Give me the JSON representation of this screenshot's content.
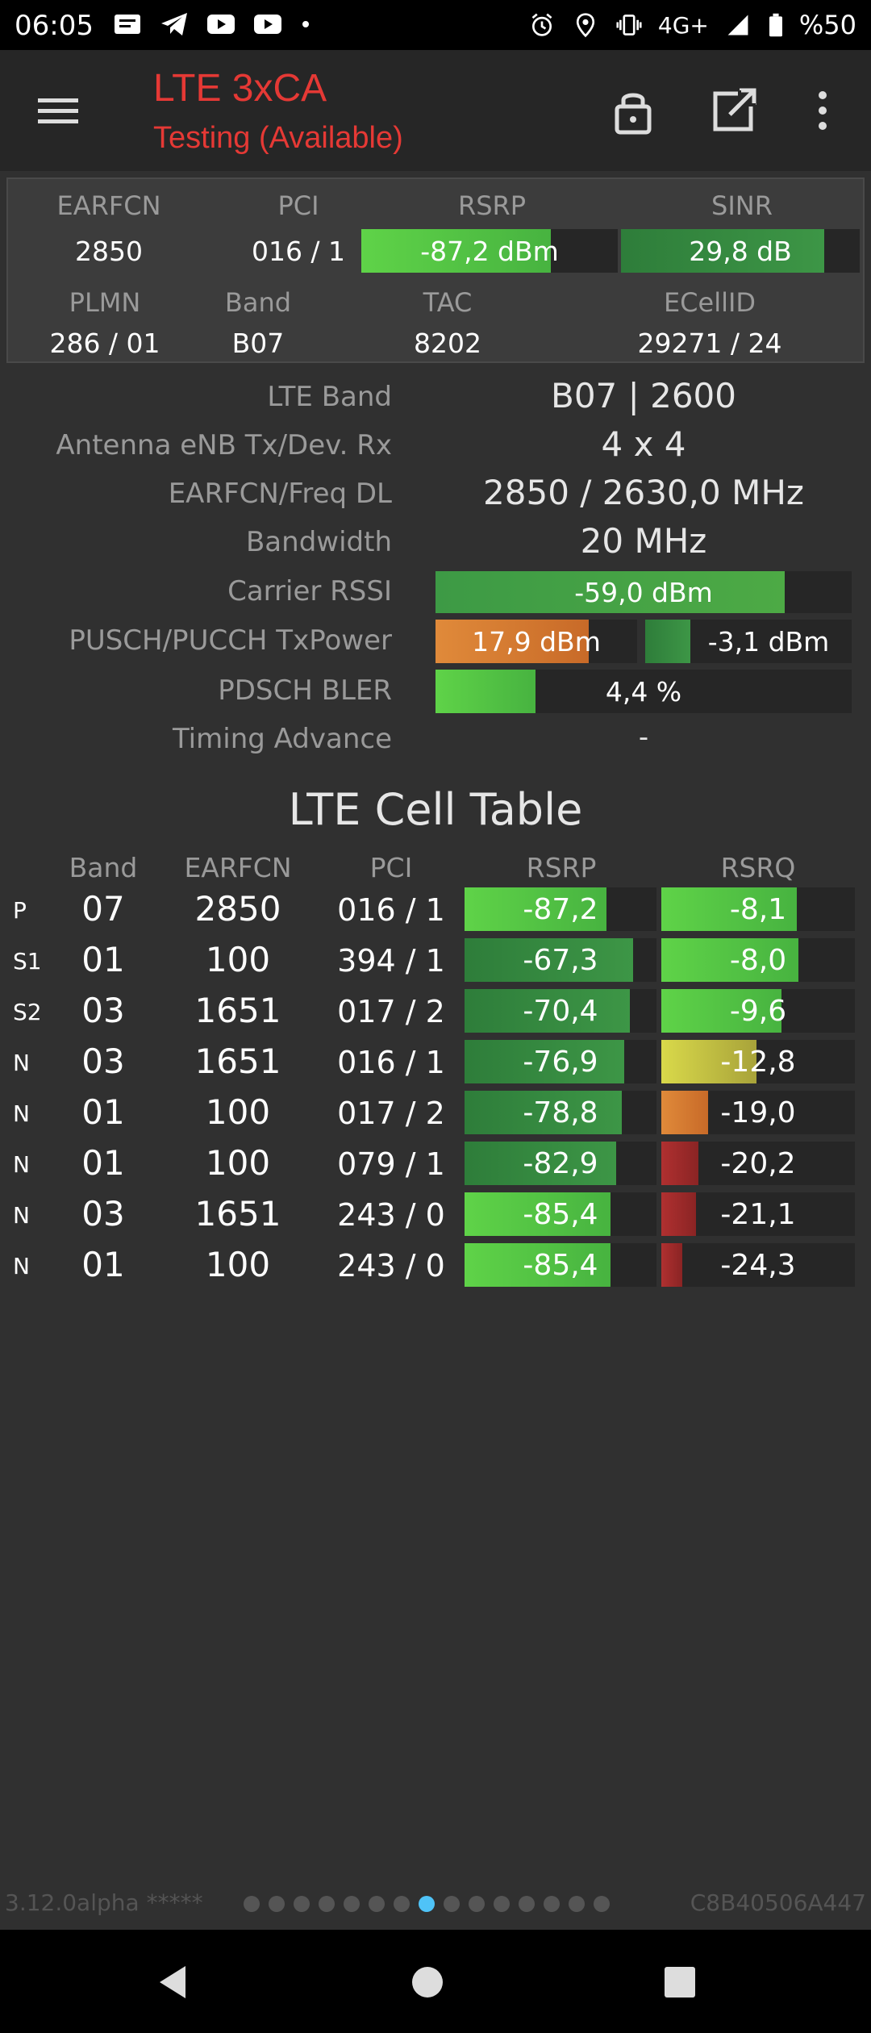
{
  "status_bar": {
    "time": "06:05",
    "network": "4G+",
    "battery": "%50",
    "icons_left": [
      "notification-icon",
      "telegram-icon",
      "youtube-icon",
      "youtube-icon",
      "dot-icon"
    ],
    "icons_right": [
      "alarm-icon",
      "location-icon",
      "vibrate-icon",
      "signal-icon",
      "battery-icon"
    ]
  },
  "app_bar": {
    "title": "LTE 3xCA",
    "subtitle": "Testing (Available)",
    "title_color": "#e53935"
  },
  "serving": {
    "headers": {
      "earfcn": "EARFCN",
      "pci": "PCI",
      "rsrp": "RSRP",
      "sinr": "SINR",
      "plmn": "PLMN",
      "band": "Band",
      "tac": "TAC",
      "ecellid": "ECellID"
    },
    "earfcn": "2850",
    "pci": "016 / 1",
    "rsrp": {
      "text": "-87,2 dBm",
      "level": 0.74
    },
    "sinr": {
      "text": "29,8 dB",
      "level": 0.85
    },
    "plmn": "286 / 01",
    "band": "B07",
    "tac": "8202",
    "ecellid": "29271 / 24"
  },
  "info": {
    "lte_band_label": "LTE Band",
    "lte_band": "B07 | 2600",
    "antenna_label": "Antenna eNB Tx/Dev. Rx",
    "antenna": "4 x 4",
    "earfcn_freq_label": "EARFCN/Freq DL",
    "earfcn_freq": "2850 / 2630,0 MHz",
    "bandwidth_label": "Bandwidth",
    "bandwidth": "20 MHz",
    "carrier_rssi_label": "Carrier RSSI",
    "carrier_rssi": {
      "text": "-59,0 dBm",
      "level": 0.84
    },
    "txpower_label": "PUSCH/PUCCH TxPower",
    "pusch": {
      "text": "17,9 dBm",
      "level": 0.76
    },
    "pucch": {
      "text": "-3,1 dBm",
      "level": 0.22
    },
    "bler_label": "PDSCH BLER",
    "bler": {
      "text": "4,4 %",
      "level": 0.24
    },
    "timing_label": "Timing Advance",
    "timing": "-"
  },
  "cell_table": {
    "title": "LTE Cell Table",
    "headers": {
      "band": "Band",
      "earfcn": "EARFCN",
      "pci": "PCI",
      "rsrp": "RSRP",
      "rsrq": "RSRQ"
    },
    "rows": [
      {
        "type": "P",
        "band": "07",
        "earfcn": "2850",
        "pci": "016 / 1",
        "rsrp": "-87,2",
        "rsrp_level": 0.74,
        "rsrp_color": "bright",
        "rsrq": "-8,1",
        "rsrq_level": 0.7,
        "rsrq_color": "bright"
      },
      {
        "type": "S1",
        "band": "01",
        "earfcn": "100",
        "pci": "394 / 1",
        "rsrp": "-67,3",
        "rsrp_level": 0.88,
        "rsrp_color": "dark",
        "rsrq": "-8,0",
        "rsrq_level": 0.71,
        "rsrq_color": "bright"
      },
      {
        "type": "S2",
        "band": "03",
        "earfcn": "1651",
        "pci": "017 / 2",
        "rsrp": "-70,4",
        "rsrp_level": 0.86,
        "rsrp_color": "dark",
        "rsrq": "-9,6",
        "rsrq_level": 0.62,
        "rsrq_color": "bright"
      },
      {
        "type": "N",
        "band": "03",
        "earfcn": "1651",
        "pci": "016 / 1",
        "rsrp": "-76,9",
        "rsrp_level": 0.83,
        "rsrp_color": "dark",
        "rsrq": "-12,8",
        "rsrq_level": 0.49,
        "rsrq_color": "yellow"
      },
      {
        "type": "N",
        "band": "01",
        "earfcn": "100",
        "pci": "017 / 2",
        "rsrp": "-78,8",
        "rsrp_level": 0.82,
        "rsrp_color": "dark",
        "rsrq": "-19,0",
        "rsrq_level": 0.24,
        "rsrq_color": "orange"
      },
      {
        "type": "N",
        "band": "01",
        "earfcn": "100",
        "pci": "079 / 1",
        "rsrp": "-82,9",
        "rsrp_level": 0.79,
        "rsrp_color": "dark",
        "rsrq": "-20,2",
        "rsrq_level": 0.19,
        "rsrq_color": "red"
      },
      {
        "type": "N",
        "band": "03",
        "earfcn": "1651",
        "pci": "243 / 0",
        "rsrp": "-85,4",
        "rsrp_level": 0.76,
        "rsrp_color": "bright",
        "rsrq": "-21,1",
        "rsrq_level": 0.18,
        "rsrq_color": "red"
      },
      {
        "type": "N",
        "band": "01",
        "earfcn": "100",
        "pci": "243 / 0",
        "rsrp": "-85,4",
        "rsrp_level": 0.76,
        "rsrp_color": "bright",
        "rsrq": "-24,3",
        "rsrq_level": 0.11,
        "rsrq_color": "red"
      }
    ]
  },
  "footer": {
    "version": "3.12.0alpha *****",
    "device_id": "C8B40506A447",
    "pages": 15,
    "active_page": 7
  }
}
